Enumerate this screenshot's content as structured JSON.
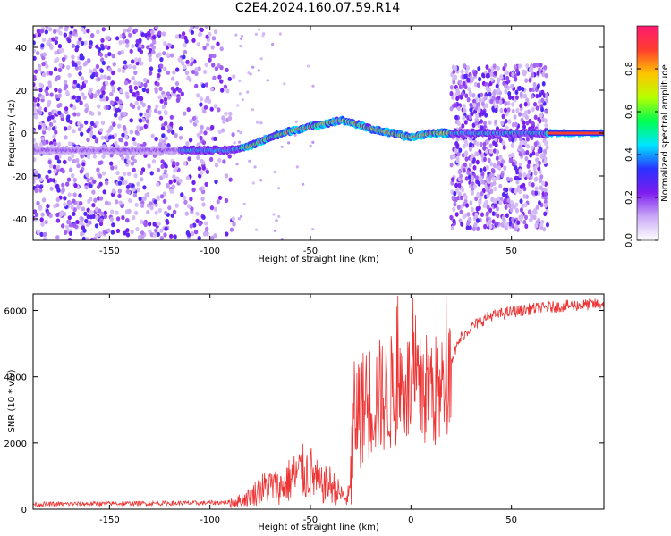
{
  "title": "C2E4.2024.160.07.59.R14",
  "colors": {
    "snr_line": "#ee3333",
    "colorbar_stops": [
      "#ffffff",
      "#c9a8f5",
      "#7c1cf0",
      "#2a33ff",
      "#00e6ff",
      "#00ff50",
      "#b6ff00",
      "#ffc400",
      "#ff3d2e",
      "#ff1a70"
    ]
  },
  "chart_data": [
    {
      "type": "heatmap",
      "xlabel": "Height of straight line (km)",
      "ylabel": "Frequency (Hz)",
      "xlim": [
        -188,
        96
      ],
      "ylim": [
        -50,
        50
      ],
      "xticks": [
        -150,
        -100,
        -50,
        0,
        50
      ],
      "yticks": [
        -40,
        -20,
        0,
        20,
        40
      ],
      "colorbar": {
        "label": "Normalized spectral amplitude",
        "range": [
          0.0,
          1.0
        ],
        "ticks": [
          0.0,
          0.2,
          0.4,
          0.6,
          0.8
        ]
      },
      "ridge_center": {
        "x": [
          -188,
          -150,
          -120,
          -110,
          -100,
          -90,
          -80,
          -70,
          -60,
          -50,
          -40,
          -35,
          -30,
          -20,
          -10,
          0,
          10,
          20,
          30,
          50,
          70,
          96
        ],
        "y": [
          -8,
          -8,
          -8,
          -8,
          -8,
          -8,
          -6,
          -2,
          1,
          3,
          5,
          6,
          5,
          2,
          0,
          -2,
          0,
          0,
          0,
          0,
          0,
          0
        ]
      }
    },
    {
      "type": "line",
      "xlabel": "Height of straight line (km)",
      "ylabel": "SNR (10 * v/v)",
      "xlim": [
        -188,
        96
      ],
      "ylim": [
        0,
        6500
      ],
      "xticks": [
        -150,
        -100,
        -50,
        0,
        50
      ],
      "yticks": [
        0,
        2000,
        4000,
        6000
      ],
      "series": [
        {
          "x": [
            -188,
            -150,
            -120,
            -100,
            -90,
            -85,
            -80,
            -75,
            -70,
            -65,
            -60,
            -55,
            -50,
            -45,
            -40,
            -35,
            -32,
            -30,
            -28,
            -25,
            -20,
            -15,
            -10,
            -5,
            0,
            5,
            10,
            15,
            20,
            25,
            30,
            40,
            50,
            60,
            70,
            80,
            96
          ],
          "values": [
            150,
            170,
            180,
            190,
            210,
            260,
            380,
            600,
            700,
            650,
            900,
            1100,
            1100,
            700,
            750,
            450,
            300,
            600,
            2900,
            3000,
            3300,
            3400,
            3500,
            3800,
            3600,
            3500,
            3700,
            3300,
            4500,
            5200,
            5500,
            5850,
            5950,
            6050,
            6100,
            6150,
            6200
          ]
        }
      ]
    }
  ]
}
